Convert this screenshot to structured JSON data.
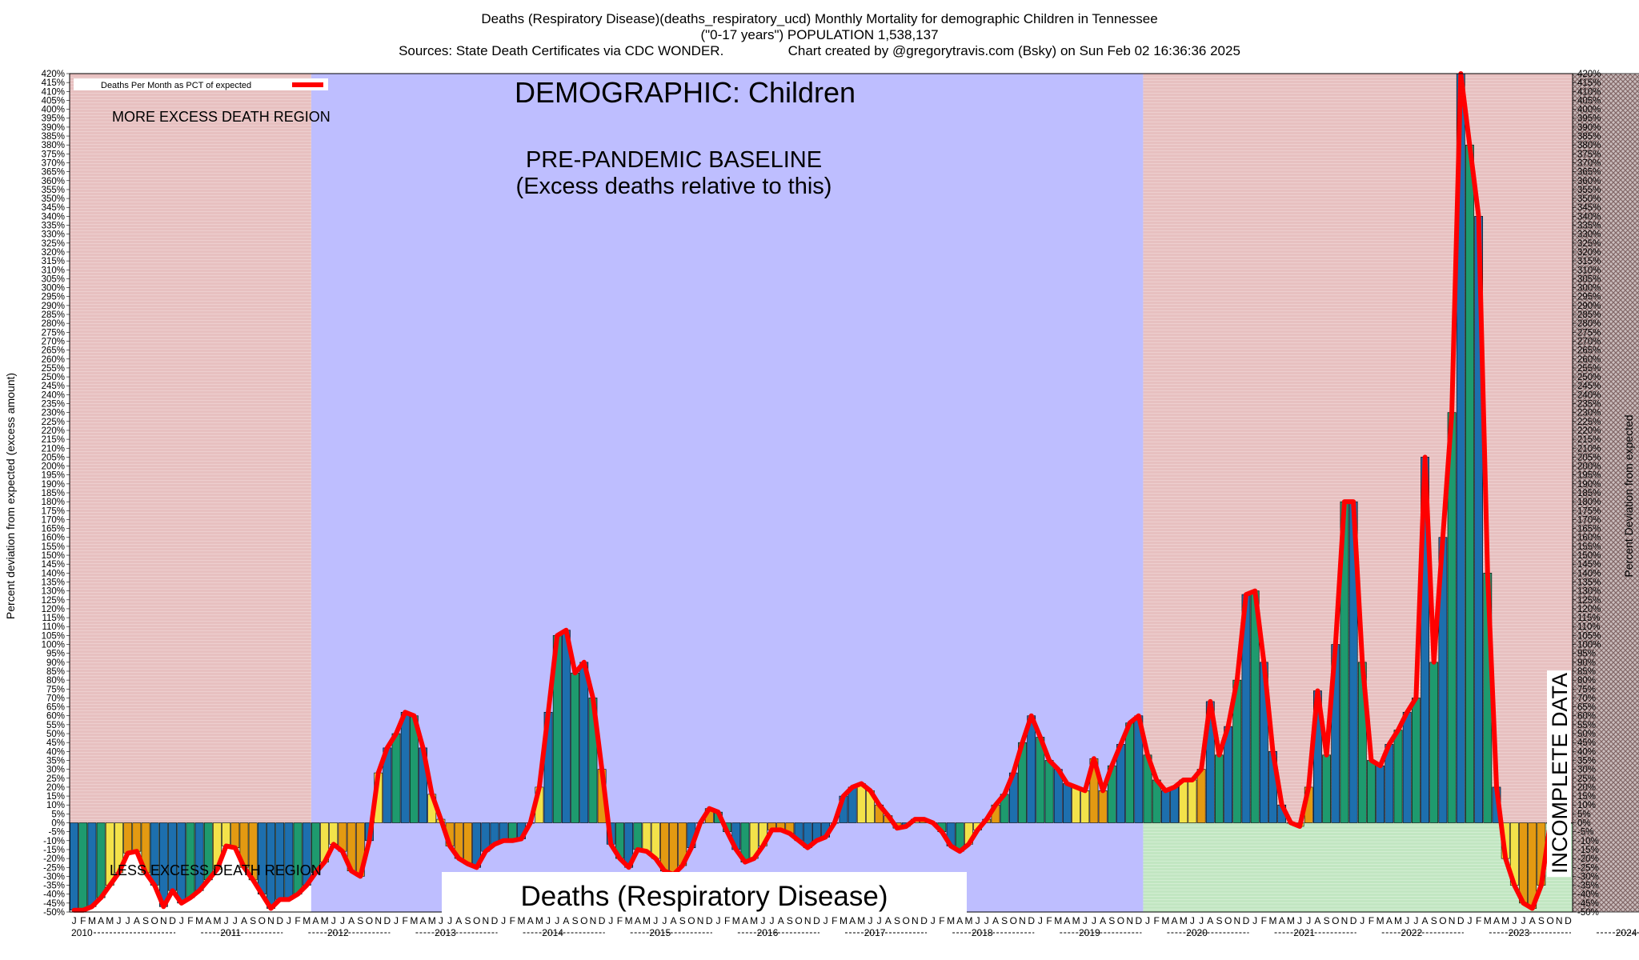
{
  "header": {
    "line1": "Deaths (Respiratory Disease)(deaths_respiratory_ucd) Monthly Mortality for demographic Children in Tennessee",
    "line2": "(\"0-17 years\") POPULATION 1,538,137",
    "line3": "Sources: State Death Certificates via CDC WONDER.                 Chart created by @gregorytravis.com (Bsky) on Sun Feb 02 16:36:36 2025"
  },
  "chart_data": {
    "type": "bar",
    "title": "Deaths (Respiratory Disease)",
    "ylabel_left": "Percent deviation from expected (excess amount)",
    "ylabel_right": "Percent Deviation from expected",
    "ylim": [
      -50,
      420
    ],
    "ytick_step": 5,
    "legend": {
      "label": "Deaths Per Month as PCT of expected",
      "placement": "top-left"
    },
    "annotations": {
      "demographic": "DEMOGRAPHIC: Children",
      "baseline_line1": "PRE-PANDEMIC BASELINE",
      "baseline_line2": "(Excess deaths relative to this)",
      "more_excess": "MORE EXCESS DEATH REGION",
      "less_excess": "LESS EXCESS DEATH REGION",
      "incomplete": "INCOMPLETE DATA"
    },
    "month_letters": [
      "J",
      "F",
      "M",
      "A",
      "M",
      "J",
      "J",
      "A",
      "S",
      "O",
      "N",
      "D"
    ],
    "years": [
      "2010",
      "2011",
      "2012",
      "2013",
      "2014",
      "2015",
      "2016",
      "2017",
      "2018",
      "2019",
      "2020",
      "2021",
      "2022",
      "2023",
      "2024"
    ],
    "regions": {
      "baseline": [
        "2012-04",
        "2019-12"
      ],
      "incomplete": [
        "2024-01",
        "2024-12"
      ]
    },
    "colors": {
      "yellow": "#f3e24a",
      "orange": "#e39a12",
      "blue": "#1d6fae",
      "green": "#1e9a6e",
      "line": "#ff0000",
      "region_pink": "#e7c0c0",
      "region_blue": "#bebeff",
      "region_green": "#c2e6c2",
      "incomplete_hatch": "#7a5050"
    },
    "series": [
      {
        "name": "Deaths Per Month as PCT of expected",
        "values": [
          -49,
          -49,
          -47,
          -42,
          -35,
          -28,
          -17,
          -16,
          -28,
          -35,
          -47,
          -38,
          -45,
          -42,
          -38,
          -32,
          -26,
          -13,
          -14,
          -25,
          -32,
          -40,
          -48,
          -43,
          -43,
          -40,
          -35,
          -28,
          -22,
          -12,
          -16,
          -27,
          -30,
          -10,
          28,
          42,
          50,
          62,
          60,
          42,
          16,
          2,
          -13,
          -20,
          -23,
          -25,
          -16,
          -12,
          -10,
          -10,
          -9,
          0,
          20,
          62,
          105,
          108,
          84,
          90,
          70,
          30,
          -12,
          -20,
          -25,
          -15,
          -16,
          -20,
          -27,
          -29,
          -24,
          -14,
          0,
          8,
          6,
          -5,
          -15,
          -22,
          -20,
          -13,
          -4,
          -4,
          -6,
          -10,
          -14,
          -10,
          -8,
          0,
          15,
          20,
          22,
          18,
          10,
          4,
          -3,
          -2,
          2,
          2,
          0,
          -5,
          -13,
          -16,
          -12,
          -4,
          2,
          10,
          16,
          28,
          45,
          60,
          48,
          35,
          30,
          22,
          20,
          18,
          36,
          18,
          32,
          44,
          56,
          60,
          38,
          24,
          18,
          20,
          24,
          24,
          30,
          68,
          38,
          54,
          80,
          128,
          130,
          90,
          40,
          10,
          0,
          -2,
          20,
          74,
          38,
          100,
          180,
          180,
          90,
          35,
          32,
          44,
          52,
          62,
          70,
          205,
          90,
          160,
          230,
          420,
          380,
          340,
          140,
          20,
          -20,
          -35,
          -45,
          -48,
          -35,
          0,
          0,
          0
        ]
      }
    ]
  }
}
